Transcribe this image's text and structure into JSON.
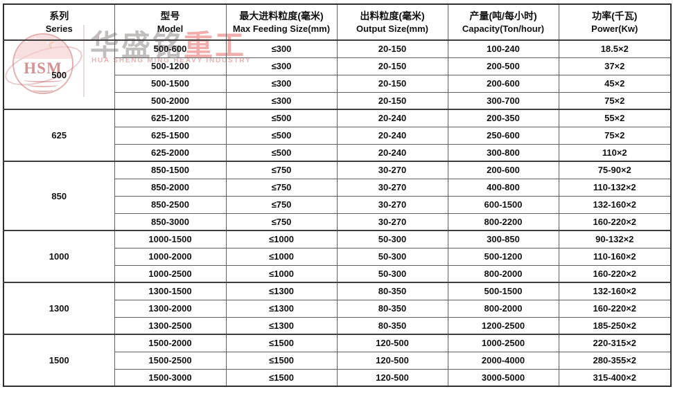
{
  "watermark": {
    "logo_text": "HSM",
    "brand_cn": "华盛铭",
    "brand_cn_heavy": "重工",
    "brand_en": "HUA SHENG MING HEAVY INDUSTRY"
  },
  "table": {
    "headers": [
      {
        "cn": "系列",
        "en": "Series"
      },
      {
        "cn": "型号",
        "en": "Model"
      },
      {
        "cn": "最大进料粒度(毫米)",
        "en": "Max Feeding Size(mm)"
      },
      {
        "cn": "出料粒度(毫米)",
        "en": "Output Size(mm)"
      },
      {
        "cn": "产量(吨/每小时)",
        "en": "Capacity(Ton/hour)"
      },
      {
        "cn": "功率(千瓦)",
        "en": "Power(Kw)"
      }
    ],
    "groups": [
      {
        "series": "500",
        "rows": [
          {
            "model": "500-600",
            "max_feeding": "≤300",
            "output": "20-150",
            "capacity": "100-240",
            "power": "18.5×2"
          },
          {
            "model": "500-1200",
            "max_feeding": "≤300",
            "output": "20-150",
            "capacity": "200-500",
            "power": "37×2"
          },
          {
            "model": "500-1500",
            "max_feeding": "≤300",
            "output": "20-150",
            "capacity": "200-600",
            "power": "45×2"
          },
          {
            "model": "500-2000",
            "max_feeding": "≤300",
            "output": "20-150",
            "capacity": "300-700",
            "power": "75×2"
          }
        ]
      },
      {
        "series": "625",
        "rows": [
          {
            "model": "625-1200",
            "max_feeding": "≤500",
            "output": "20-240",
            "capacity": "200-350",
            "power": "55×2"
          },
          {
            "model": "625-1500",
            "max_feeding": "≤500",
            "output": "20-240",
            "capacity": "250-600",
            "power": "75×2"
          },
          {
            "model": "625-2000",
            "max_feeding": "≤500",
            "output": "20-240",
            "capacity": "300-800",
            "power": "110×2"
          }
        ]
      },
      {
        "series": "850",
        "rows": [
          {
            "model": "850-1500",
            "max_feeding": "≤750",
            "output": "30-270",
            "capacity": "200-600",
            "power": "75-90×2"
          },
          {
            "model": "850-2000",
            "max_feeding": "≤750",
            "output": "30-270",
            "capacity": "400-800",
            "power": "110-132×2"
          },
          {
            "model": "850-2500",
            "max_feeding": "≤750",
            "output": "30-270",
            "capacity": "600-1500",
            "power": "132-160×2"
          },
          {
            "model": "850-3000",
            "max_feeding": "≤750",
            "output": "30-270",
            "capacity": "800-2200",
            "power": "160-220×2"
          }
        ]
      },
      {
        "series": "1000",
        "rows": [
          {
            "model": "1000-1500",
            "max_feeding": "≤1000",
            "output": "50-300",
            "capacity": "300-850",
            "power": "90-132×2"
          },
          {
            "model": "1000-2000",
            "max_feeding": "≤1000",
            "output": "50-300",
            "capacity": "500-1200",
            "power": "110-160×2"
          },
          {
            "model": "1000-2500",
            "max_feeding": "≤1000",
            "output": "50-300",
            "capacity": "800-2000",
            "power": "160-220×2"
          }
        ]
      },
      {
        "series": "1300",
        "rows": [
          {
            "model": "1300-1500",
            "max_feeding": "≤1300",
            "output": "80-350",
            "capacity": "500-1500",
            "power": "132-160×2"
          },
          {
            "model": "1300-2000",
            "max_feeding": "≤1300",
            "output": "80-350",
            "capacity": "800-2000",
            "power": "160-220×2"
          },
          {
            "model": "1300-2500",
            "max_feeding": "≤1300",
            "output": "80-350",
            "capacity": "1200-2500",
            "power": "185-250×2"
          }
        ]
      },
      {
        "series": "1500",
        "rows": [
          {
            "model": "1500-2000",
            "max_feeding": "≤1500",
            "output": "120-500",
            "capacity": "1000-2500",
            "power": "220-315×2"
          },
          {
            "model": "1500-2500",
            "max_feeding": "≤1500",
            "output": "120-500",
            "capacity": "2000-4000",
            "power": "280-355×2"
          },
          {
            "model": "1500-3000",
            "max_feeding": "≤1500",
            "output": "120-500",
            "capacity": "3000-5000",
            "power": "315-400×2"
          }
        ]
      }
    ]
  },
  "colors": {
    "outer_border": "#2e2e2e",
    "grid_line": "#5f5f5f",
    "group_line": "#3d3d3d",
    "text": "#111111",
    "watermark_red": "#ee9e9e",
    "watermark_gray": "#b2acac"
  }
}
